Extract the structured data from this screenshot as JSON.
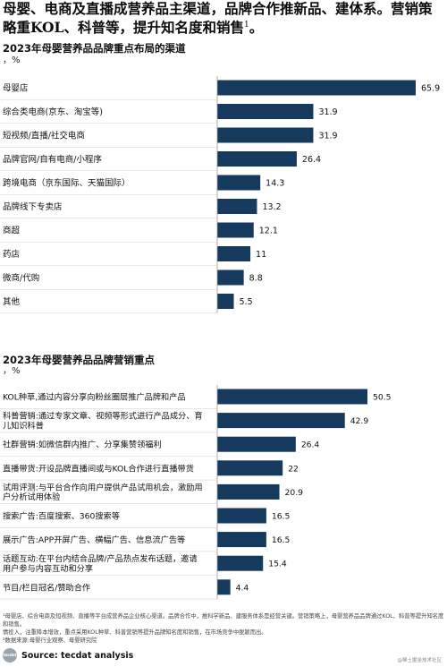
{
  "headline": {
    "text": "母婴、电商及直播成营养品主渠道，品牌合作推新品、建体系。营销策略重KOL、科普等，提升知名度和销售",
    "footnote_mark": "1",
    "period": "。"
  },
  "colors": {
    "bar": "#163a5e",
    "label_text": "#111111"
  },
  "chart_data": [
    {
      "type": "bar",
      "orientation": "horizontal",
      "title": "2023年母婴营养品品牌重点布局的渠道",
      "unit": "，%",
      "categories": [
        "母婴店",
        "综合类电商(京东、淘宝等)",
        "短视频/直播/社交电商",
        "品牌官网/自有电商/小程序",
        "跨境电商（京东国际、天猫国际）",
        "品牌线下专卖店",
        "商超",
        "药店",
        "微商/代购",
        "其他"
      ],
      "values": [
        65.9,
        31.9,
        31.9,
        26.4,
        14.3,
        13.2,
        12.1,
        11,
        8.8,
        5.5
      ],
      "value_labels": [
        "65.9",
        "31.9",
        "31.9",
        "26.4",
        "14.3",
        "13.2",
        "12.1",
        "11",
        "8.8",
        "5.5"
      ],
      "xlim": [
        0,
        65.9
      ],
      "grid": false,
      "legend": "none"
    },
    {
      "type": "bar",
      "orientation": "horizontal",
      "title": "2023年母婴营养品品牌营销重点",
      "unit": "，%",
      "categories": [
        "KOL种草,通过内容分享向粉丝圈层推广品牌和产品",
        "科普营销:通过专家文章、视频等形式进行产品成分、育儿知识科普",
        "社群营销:如微信群内推广、分享集赞领福利",
        "直播带货:开设品牌直播间或与KOL合作进行直播带货",
        "试用评测:与平台合作向用户提供产品试用机会，激励用户分析试用体验",
        "搜索广告:百度搜索、360搜索等",
        "展示广告:APP开屏广告、横幅广告、信息流广告等",
        "话题互动:在平台内结合品牌/产品热点发布话题，邀请用户参与内容互动和分享",
        "节目/栏目冠名/赞助合作"
      ],
      "values": [
        50.5,
        42.9,
        26.4,
        22,
        20.9,
        16.5,
        16.5,
        15.4,
        4.4
      ],
      "value_labels": [
        "50.5",
        "42.9",
        "26.4",
        "22",
        "20.9",
        "16.5",
        "16.5",
        "15.4",
        "4.4"
      ],
      "xlim": [
        0,
        50.5
      ],
      "grid": false,
      "legend": "none"
    }
  ],
  "footnote": {
    "line1": "¹母婴店、综合电商及短视频、直播等平台成营养品企业核心渠道。品牌合作中，推科学新品、建服务体系是经营关键。营销策略上，母婴营养品品牌通过KOL、科普等提升知名度和销售。",
    "line2": "情投入，注重降本增效，重点采用KOL种草、科普营销等提升品牌知名度和销售，在市场竞争中脱颖而出。",
    "line3": "²数据来源:母婴行业观察、母婴研究院"
  },
  "source": {
    "logo_text": "tecdat",
    "text": "Source: tecdat analysis"
  },
  "watermark": "@稀土掘金技术社区"
}
